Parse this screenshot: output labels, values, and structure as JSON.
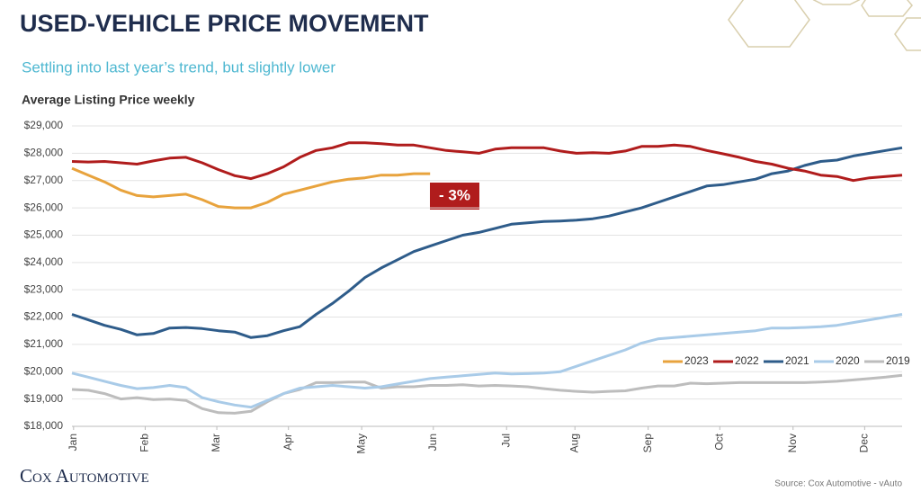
{
  "chart_data": {
    "type": "line",
    "title": "USED-VEHICLE PRICE MOVEMENT",
    "subtitle": "Settling into last year’s trend, but slightly lower",
    "chart_label": "Average Listing Price weekly",
    "annotation": "- 3%",
    "logo": "Cox Automotive",
    "source": "Source: Cox Automotive - vAuto",
    "x": [
      1,
      2,
      3,
      4,
      5,
      6,
      7,
      8,
      9,
      10,
      11,
      12,
      13,
      14,
      15,
      16,
      17,
      18,
      19,
      20,
      21,
      22,
      23,
      24,
      25,
      26,
      27,
      28,
      29,
      30,
      31,
      32,
      33,
      34,
      35,
      36,
      37,
      38,
      39,
      40,
      41,
      42,
      43,
      44,
      45,
      46,
      47,
      48,
      49,
      50,
      51,
      52
    ],
    "xlim": [
      1,
      52
    ],
    "xticks": [
      {
        "value": 1.1,
        "label": "Jan"
      },
      {
        "value": 5.5,
        "label": "Feb"
      },
      {
        "value": 9.9,
        "label": "Mar"
      },
      {
        "value": 14.3,
        "label": "Apr"
      },
      {
        "value": 18.8,
        "label": "May"
      },
      {
        "value": 23.2,
        "label": "Jun"
      },
      {
        "value": 27.7,
        "label": "Jul"
      },
      {
        "value": 31.9,
        "label": "Aug"
      },
      {
        "value": 36.4,
        "label": "Sep"
      },
      {
        "value": 40.8,
        "label": "Oct"
      },
      {
        "value": 45.3,
        "label": "Nov"
      },
      {
        "value": 49.7,
        "label": "Dec"
      }
    ],
    "ylim": [
      18000,
      29000
    ],
    "yticks": [
      {
        "value": 18000,
        "label": "$18,000"
      },
      {
        "value": 19000,
        "label": "$19,000"
      },
      {
        "value": 20000,
        "label": "$20,000"
      },
      {
        "value": 21000,
        "label": "$21,000"
      },
      {
        "value": 22000,
        "label": "$22,000"
      },
      {
        "value": 23000,
        "label": "$23,000"
      },
      {
        "value": 24000,
        "label": "$24,000"
      },
      {
        "value": 25000,
        "label": "$25,000"
      },
      {
        "value": 26000,
        "label": "$26,000"
      },
      {
        "value": 27000,
        "label": "$27,000"
      },
      {
        "value": 28000,
        "label": "$28,000"
      },
      {
        "value": 29000,
        "label": "$29,000"
      }
    ],
    "grid": true,
    "legend": "bottom-right",
    "series": [
      {
        "name": "2023",
        "color": "#e8a33d",
        "values": [
          27450,
          27200,
          26950,
          26650,
          26450,
          26400,
          26450,
          26500,
          26300,
          26050,
          26000,
          26000,
          26200,
          26500,
          26650,
          26800,
          26950,
          27050,
          27100,
          27200,
          27200,
          27250,
          27250,
          null,
          null,
          null,
          null,
          null,
          null,
          null,
          null,
          null,
          null,
          null,
          null,
          null,
          null,
          null,
          null,
          null,
          null,
          null,
          null,
          null,
          null,
          null,
          null,
          null,
          null,
          null,
          null,
          null
        ]
      },
      {
        "name": "2022",
        "color": "#b01c1c",
        "values": [
          27700,
          27680,
          27700,
          27650,
          27600,
          27720,
          27820,
          27850,
          27650,
          27400,
          27180,
          27070,
          27250,
          27500,
          27850,
          28100,
          28200,
          28380,
          28380,
          28350,
          28300,
          28300,
          28200,
          28100,
          28050,
          28000,
          28150,
          28200,
          28200,
          28200,
          28080,
          28000,
          28020,
          28000,
          28080,
          28250,
          28250,
          28300,
          28250,
          28100,
          27980,
          27850,
          27700,
          27600,
          27450,
          27350,
          27200,
          27150,
          27000,
          27100,
          27150,
          27200
        ]
      },
      {
        "name": "2021",
        "color": "#2e5c8a",
        "values": [
          22100,
          21900,
          21700,
          21550,
          21350,
          21400,
          21600,
          21620,
          21580,
          21500,
          21450,
          21250,
          21320,
          21500,
          21650,
          22100,
          22500,
          22950,
          23450,
          23800,
          24100,
          24400,
          24600,
          24800,
          25000,
          25100,
          25250,
          25400,
          25450,
          25500,
          25520,
          25550,
          25600,
          25700,
          25850,
          26000,
          26200,
          26400,
          26600,
          26800,
          26850,
          26950,
          27050,
          27250,
          27350,
          27550,
          27700,
          27750,
          27900,
          28000,
          28100,
          28200
        ]
      },
      {
        "name": "2020",
        "color": "#a9cbe8",
        "values": [
          19950,
          19800,
          19650,
          19500,
          19380,
          19420,
          19500,
          19420,
          19050,
          18900,
          18780,
          18700,
          18950,
          19200,
          19400,
          19450,
          19500,
          19450,
          19400,
          19450,
          19550,
          19650,
          19750,
          19800,
          19850,
          19900,
          19950,
          19920,
          19930,
          19950,
          20000,
          20200,
          20400,
          20600,
          20800,
          21050,
          21200,
          21250,
          21300,
          21350,
          21400,
          21450,
          21500,
          21600,
          21600,
          21620,
          21650,
          21700,
          21800,
          21900,
          22000,
          22100
        ]
      },
      {
        "name": "2019",
        "color": "#bdbdbd",
        "values": [
          19350,
          19320,
          19200,
          19000,
          19050,
          18980,
          19000,
          18950,
          18650,
          18500,
          18480,
          18550,
          18900,
          19200,
          19350,
          19600,
          19600,
          19620,
          19620,
          19400,
          19450,
          19450,
          19500,
          19500,
          19520,
          19480,
          19500,
          19480,
          19450,
          19380,
          19320,
          19280,
          19250,
          19280,
          19300,
          19400,
          19480,
          19480,
          19580,
          19560,
          19580,
          19600,
          19600,
          19600,
          19600,
          19600,
          19620,
          19650,
          19700,
          19750,
          19800,
          19870
        ]
      }
    ]
  }
}
